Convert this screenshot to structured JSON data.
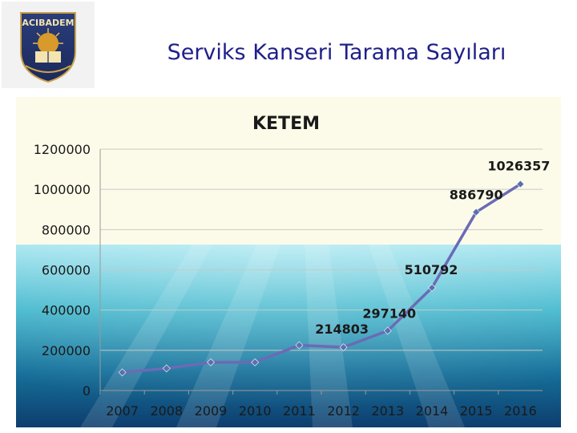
{
  "slide": {
    "title": "Serviks Kanseri Tarama Sayıları",
    "logo_text": "ACIBADEM"
  },
  "colors": {
    "title": "#1f1f8a",
    "line": "#6b6bb5",
    "marker": "#5a6fb0",
    "chart_bg_top": "#fcfbe9",
    "water_top": "#9fe4ef",
    "water_bottom": "#0d3d6e"
  },
  "chart_data": {
    "type": "line",
    "title": "KETEM",
    "categories": [
      "2007",
      "2008",
      "2009",
      "2010",
      "2011",
      "2012",
      "2013",
      "2014",
      "2015",
      "2016"
    ],
    "series": [
      {
        "values": [
          90000,
          110000,
          140000,
          140000,
          225000,
          214803,
          297140,
          510792,
          886790,
          1026357
        ]
      }
    ],
    "data_labels": [
      {
        "index": 5,
        "text": "214803"
      },
      {
        "index": 6,
        "text": "297140"
      },
      {
        "index": 7,
        "text": "510792"
      },
      {
        "index": 8,
        "text": "886790"
      },
      {
        "index": 9,
        "text": "1026357"
      }
    ],
    "yticks": [
      "0",
      "200000",
      "400000",
      "600000",
      "800000",
      "1000000",
      "1200000"
    ],
    "ylim": [
      0,
      1200000
    ],
    "grid": true
  }
}
